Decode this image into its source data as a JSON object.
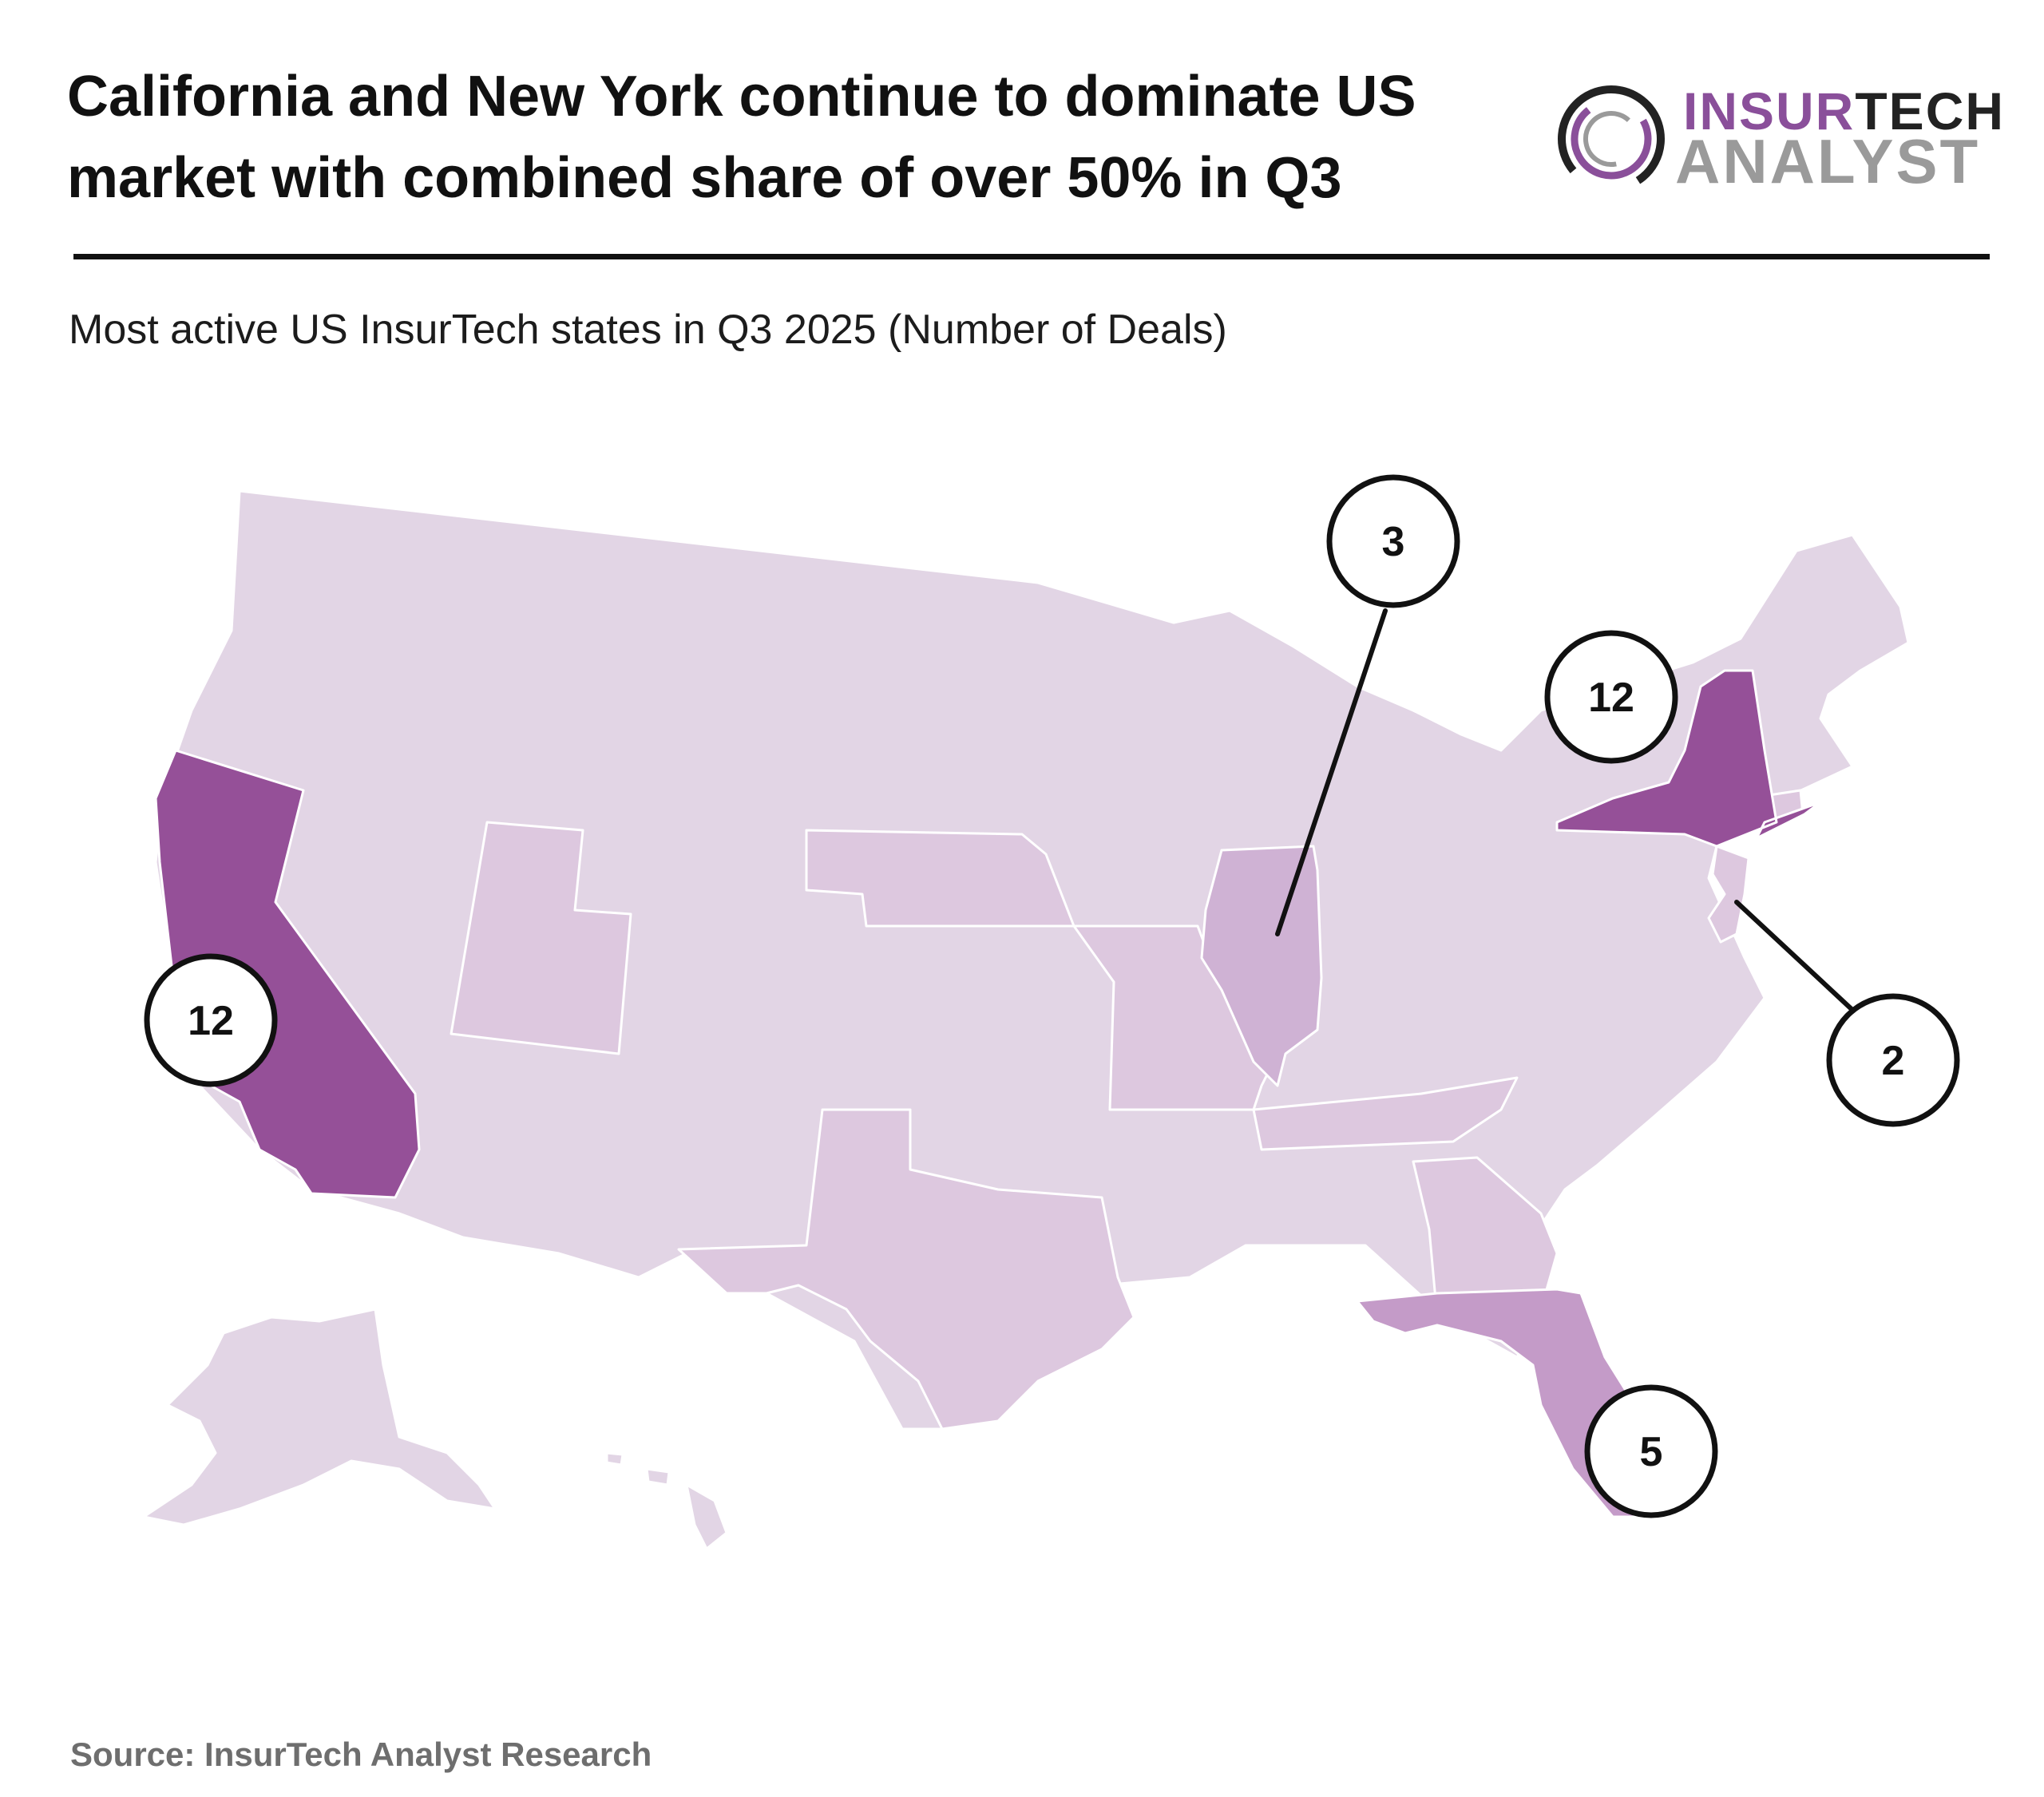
{
  "headline": {
    "line1": "California and New York continue to dominate US",
    "line2": "market with combined share of over 50% in Q3"
  },
  "logo": {
    "word1_part1": "INSUR",
    "word1_part2": "TECH",
    "word2": "ANALYST",
    "colors": {
      "purple": "#8a4f9a",
      "dark": "#222222",
      "grey": "#9a9a9a"
    }
  },
  "subtitle": "Most active US InsurTech states in Q3 2025 (Number of Deals)",
  "map": {
    "colors": {
      "base": "#e2d5e5",
      "low": "#ddc8df",
      "mid": "#cfb2d4",
      "high": "#c49bc8",
      "top": "#955098",
      "border": "#ffffff"
    },
    "states": [
      {
        "code": "CA",
        "deals": 12,
        "label": "12"
      },
      {
        "code": "NY",
        "deals": 12,
        "label": "12"
      },
      {
        "code": "FL",
        "deals": 5,
        "label": "5"
      },
      {
        "code": "IL",
        "deals": 3,
        "label": "3"
      },
      {
        "code": "NJ",
        "deals": 2,
        "label": "2"
      }
    ]
  },
  "source": "Source: InsurTech Analyst Research"
}
